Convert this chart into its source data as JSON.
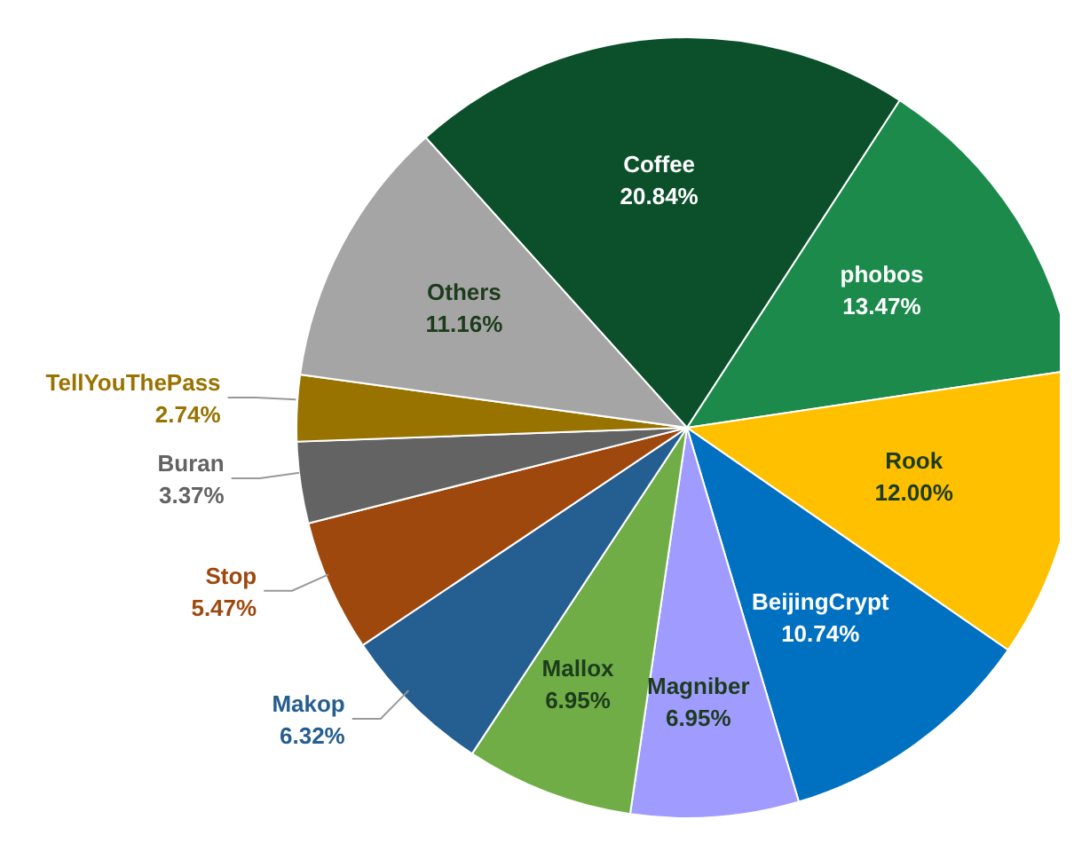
{
  "chart_data": {
    "type": "pie",
    "categories": [
      "Coffee",
      "phobos",
      "Rook",
      "BeijingCrypt",
      "Magniber",
      "Mallox",
      "Makop",
      "Stop",
      "Buran",
      "TellYouThePass",
      "Others"
    ],
    "values": [
      20.84,
      13.47,
      12.0,
      10.74,
      6.95,
      6.95,
      6.32,
      5.47,
      3.37,
      2.74,
      11.16
    ],
    "colors": [
      "#0b4f2b",
      "#1b8a4b",
      "#ffc000",
      "#0070c0",
      "#a09cff",
      "#70ad47",
      "#255e91",
      "#9e480e",
      "#636363",
      "#997300",
      "#a5a5a5"
    ],
    "value_labels": [
      "20.84%",
      "13.47%",
      "12.00%",
      "10.74%",
      "6.95%",
      "6.95%",
      "6.32%",
      "5.47%",
      "3.37%",
      "2.74%",
      "11.16%"
    ]
  }
}
